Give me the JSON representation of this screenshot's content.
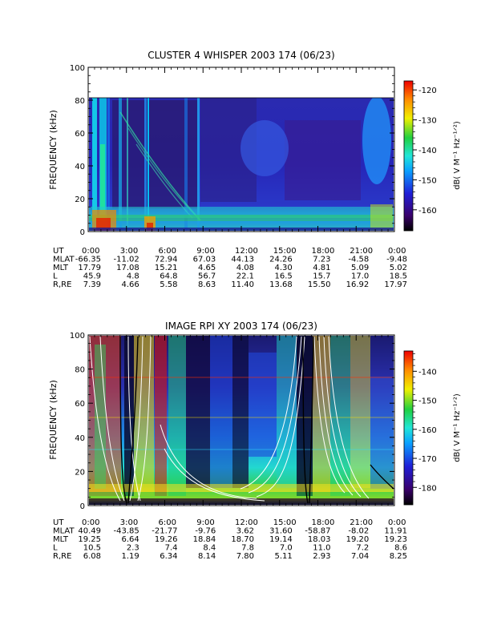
{
  "chart_data": [
    {
      "type": "heatmap",
      "title": "CLUSTER 4 WHISPER 2003 174 (06/23)",
      "ylabel": "FREQUENCY (kHz)",
      "ylim": [
        0,
        100
      ],
      "yticks": [
        "0",
        "20",
        "40",
        "60",
        "80",
        "100"
      ],
      "xlim": [
        "0:00",
        "24:00"
      ],
      "data_extent_khz": 80,
      "colorbar": {
        "label": "dB( V M⁻¹ Hz⁻¹ᐟ²)",
        "range": [
          -167,
          -117
        ],
        "ticks": [
          "-120",
          "-130",
          "-140",
          "-150",
          "-160"
        ],
        "tick_values": [
          -120,
          -130,
          -140,
          -150,
          -160
        ]
      },
      "ephemeris": {
        "labels": [
          "UT",
          "MLAT",
          "MLT",
          "L",
          "R,RE"
        ],
        "columns": [
          [
            "0:00",
            "-66.35",
            "17.79",
            "45.9",
            "7.39"
          ],
          [
            "3:00",
            "-11.02",
            "17.08",
            "4.8",
            "4.66"
          ],
          [
            "6:00",
            "72.94",
            "15.21",
            "64.8",
            "5.58"
          ],
          [
            "9:00",
            "67.03",
            "4.65",
            "56.7",
            "8.63"
          ],
          [
            "12:00",
            "44.13",
            "4.08",
            "22.1",
            "11.40"
          ],
          [
            "15:00",
            "24.26",
            "4.30",
            "16.5",
            "13.68"
          ],
          [
            "18:00",
            "7.23",
            "4.81",
            "15.7",
            "15.50"
          ],
          [
            "21:00",
            "-4.58",
            "5.09",
            "17.0",
            "16.92"
          ],
          [
            "0:00",
            "-9.48",
            "5.02",
            "18.5",
            "17.97"
          ]
        ]
      }
    },
    {
      "type": "heatmap",
      "title": "IMAGE RPI XY 2003 174 (06/23)",
      "ylabel": "FREQUENCY (kHz)",
      "ylim": [
        0,
        100
      ],
      "yticks": [
        "0",
        "20",
        "40",
        "60",
        "80",
        "100"
      ],
      "xlim": [
        "0:00",
        "24:00"
      ],
      "data_extent_khz": 100,
      "overlay": "white and black model frequency curves",
      "colorbar": {
        "label": "dB( V M⁻¹ Hz⁻¹ᐟ²)",
        "range": [
          -186,
          -133
        ],
        "ticks": [
          "-140",
          "-150",
          "-160",
          "-170",
          "-180"
        ],
        "tick_values": [
          -140,
          -150,
          -160,
          -170,
          -180
        ]
      },
      "ephemeris": {
        "labels": [
          "UT",
          "MLAT",
          "MLT",
          "L",
          "R,RE"
        ],
        "columns": [
          [
            "0:00",
            "40.49",
            "19.25",
            "10.5",
            "6.08"
          ],
          [
            "3:00",
            "-43.85",
            "6.64",
            "2.3",
            "1.19"
          ],
          [
            "6:00",
            "-21.77",
            "19.26",
            "7.4",
            "6.34"
          ],
          [
            "9:00",
            "-9.76",
            "18.84",
            "8.4",
            "8.14"
          ],
          [
            "12:00",
            "3.62",
            "18.70",
            "7.8",
            "7.80"
          ],
          [
            "15:00",
            "31.60",
            "19.14",
            "7.0",
            "5.11"
          ],
          [
            "18:00",
            "-58.87",
            "18.03",
            "11.0",
            "2.93"
          ],
          [
            "21:00",
            "-8.02",
            "19.20",
            "7.2",
            "7.04"
          ],
          [
            "0:00",
            "11.91",
            "19.23",
            "8.6",
            "8.25"
          ]
        ]
      }
    }
  ]
}
